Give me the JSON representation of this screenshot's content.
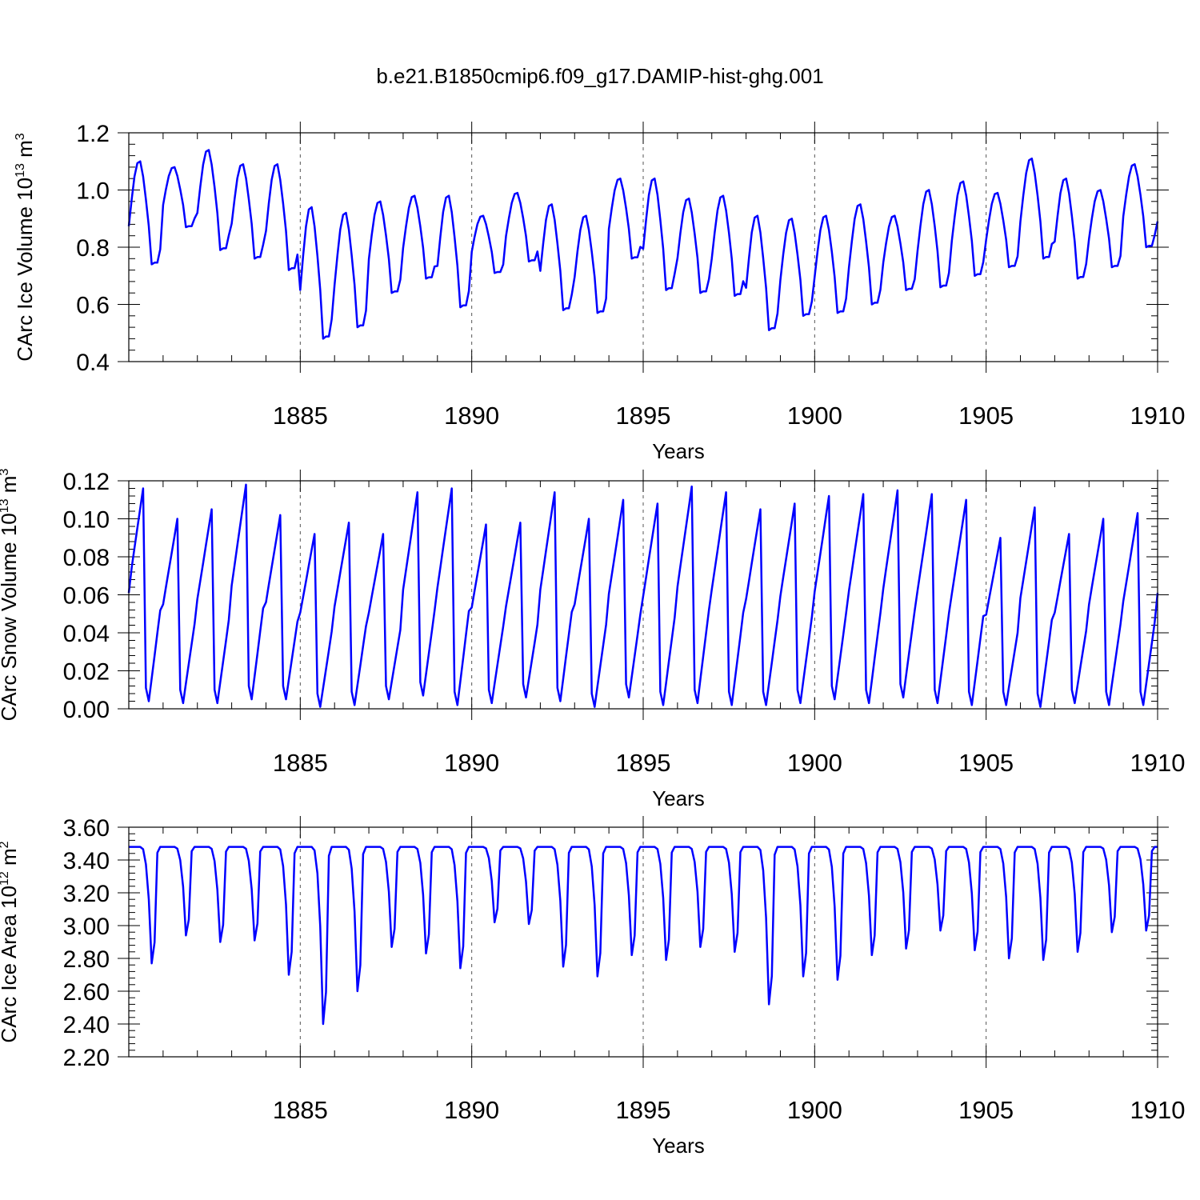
{
  "title": "b.e21.B1850cmip6.f09_g17.DAMIP-hist-ghg.001",
  "chart_data": [
    {
      "type": "line",
      "name": "ice-volume",
      "ylabel": "CArc Ice Volume 10",
      "ylabel_exp": "13",
      "ylabel_unit": " m",
      "ylabel_unit_exp": "3",
      "xlabel": "Years",
      "xlim": [
        1880,
        1910
      ],
      "ylim": [
        0.4,
        1.2
      ],
      "yticks": [
        "0.4",
        "0.6",
        "0.8",
        "1.0",
        "1.2"
      ],
      "yticks_values": [
        0.4,
        0.6,
        0.8,
        1.0,
        1.2
      ],
      "xticks": [
        "1885",
        "1890",
        "1895",
        "1900",
        "1905",
        "1910"
      ],
      "xticks_values": [
        1885,
        1890,
        1895,
        1900,
        1905,
        1910
      ],
      "grid_x": [
        1885,
        1890,
        1895,
        1900,
        1905
      ],
      "line_color": "#0000ff",
      "annual_max": [
        1.1,
        1.08,
        1.14,
        1.09,
        1.09,
        0.94,
        0.92,
        0.96,
        0.98,
        0.98,
        0.91,
        0.99,
        0.95,
        0.91,
        1.04,
        1.04,
        0.97,
        0.98,
        0.91,
        0.9,
        0.91,
        0.95,
        0.91,
        1.0,
        1.03,
        0.99,
        1.11,
        1.04,
        1.0,
        1.09
      ],
      "annual_min": [
        0.74,
        0.87,
        0.79,
        0.76,
        0.72,
        0.48,
        0.52,
        0.64,
        0.69,
        0.59,
        0.71,
        0.75,
        0.58,
        0.57,
        0.76,
        0.65,
        0.64,
        0.63,
        0.51,
        0.56,
        0.57,
        0.6,
        0.65,
        0.66,
        0.7,
        0.73,
        0.76,
        0.69,
        0.73,
        0.8
      ],
      "start_value": 0.89,
      "end_value": 0.89
    },
    {
      "type": "line",
      "name": "snow-volume",
      "ylabel": "CArc Snow Volume 10",
      "ylabel_exp": "13",
      "ylabel_unit": " m",
      "ylabel_unit_exp": "3",
      "xlabel": "Years",
      "xlim": [
        1880,
        1910
      ],
      "ylim": [
        0.0,
        0.12
      ],
      "yticks": [
        "0.00",
        "0.02",
        "0.04",
        "0.06",
        "0.08",
        "0.10",
        "0.12"
      ],
      "yticks_values": [
        0.0,
        0.02,
        0.04,
        0.06,
        0.08,
        0.1,
        0.12
      ],
      "xticks": [
        "1885",
        "1890",
        "1895",
        "1900",
        "1905",
        "1910"
      ],
      "xticks_values": [
        1885,
        1890,
        1895,
        1900,
        1905,
        1910
      ],
      "grid_x": [
        1885,
        1890,
        1895,
        1900,
        1905
      ],
      "line_color": "#0000ff",
      "annual_max": [
        0.116,
        0.1,
        0.105,
        0.118,
        0.102,
        0.092,
        0.098,
        0.092,
        0.114,
        0.116,
        0.097,
        0.098,
        0.114,
        0.1,
        0.11,
        0.108,
        0.117,
        0.114,
        0.105,
        0.108,
        0.112,
        0.113,
        0.115,
        0.113,
        0.11,
        0.09,
        0.106,
        0.092,
        0.1,
        0.103
      ],
      "annual_min": [
        0.004,
        0.003,
        0.003,
        0.005,
        0.005,
        0.001,
        0.002,
        0.005,
        0.007,
        0.002,
        0.003,
        0.006,
        0.004,
        0.001,
        0.006,
        0.002,
        0.003,
        0.002,
        0.002,
        0.003,
        0.005,
        0.003,
        0.006,
        0.003,
        0.002,
        0.002,
        0.001,
        0.003,
        0.002,
        0.002
      ],
      "start_value": 0.061,
      "end_value": 0.061
    },
    {
      "type": "line",
      "name": "ice-area",
      "ylabel": "CArc Ice Area 10",
      "ylabel_exp": "12",
      "ylabel_unit": " m",
      "ylabel_unit_exp": "2",
      "xlabel": "Years",
      "xlim": [
        1880,
        1910
      ],
      "ylim": [
        2.2,
        3.6
      ],
      "yticks": [
        "2.20",
        "2.40",
        "2.60",
        "2.80",
        "3.00",
        "3.20",
        "3.40",
        "3.60"
      ],
      "yticks_values": [
        2.2,
        2.4,
        2.6,
        2.8,
        3.0,
        3.2,
        3.4,
        3.6
      ],
      "xticks": [
        "1885",
        "1890",
        "1895",
        "1900",
        "1905",
        "1910"
      ],
      "xticks_values": [
        1885,
        1890,
        1895,
        1900,
        1905,
        1910
      ],
      "grid_x": [
        1885,
        1890,
        1895,
        1900,
        1905
      ],
      "line_color": "#0000ff",
      "annual_max": [
        3.48,
        3.48,
        3.48,
        3.48,
        3.48,
        3.48,
        3.48,
        3.48,
        3.48,
        3.48,
        3.48,
        3.48,
        3.48,
        3.48,
        3.48,
        3.48,
        3.48,
        3.48,
        3.48,
        3.48,
        3.48,
        3.48,
        3.48,
        3.48,
        3.48,
        3.48,
        3.48,
        3.48,
        3.48,
        3.48
      ],
      "annual_min": [
        2.77,
        2.94,
        2.9,
        2.91,
        2.7,
        2.4,
        2.6,
        2.87,
        2.83,
        2.74,
        3.02,
        3.01,
        2.75,
        2.69,
        2.82,
        2.79,
        2.87,
        2.84,
        2.52,
        2.69,
        2.67,
        2.82,
        2.86,
        2.97,
        2.85,
        2.8,
        2.79,
        2.84,
        2.96,
        2.97
      ],
      "start_value": 3.47,
      "end_value": 3.48
    }
  ]
}
